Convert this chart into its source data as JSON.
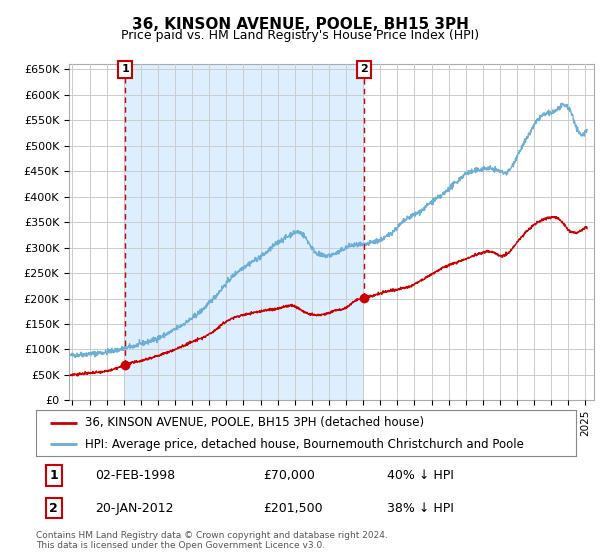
{
  "title": "36, KINSON AVENUE, POOLE, BH15 3PH",
  "subtitle": "Price paid vs. HM Land Registry's House Price Index (HPI)",
  "legend_line1": "36, KINSON AVENUE, POOLE, BH15 3PH (detached house)",
  "legend_line2": "HPI: Average price, detached house, Bournemouth Christchurch and Poole",
  "transaction1_date": "02-FEB-1998",
  "transaction1_price": "£70,000",
  "transaction1_hpi": "40% ↓ HPI",
  "transaction1_year": 1998.09,
  "transaction1_value": 70000,
  "transaction2_date": "20-JAN-2012",
  "transaction2_price": "£201,500",
  "transaction2_hpi": "38% ↓ HPI",
  "transaction2_year": 2012.05,
  "transaction2_value": 201500,
  "hpi_color": "#6baed6",
  "price_color": "#cc0000",
  "shade_color": "#ddeeff",
  "background_color": "#ffffff",
  "grid_color": "#cccccc",
  "ylim": [
    0,
    660000
  ],
  "xlim_start": 1994.8,
  "xlim_end": 2025.5,
  "footer": "Contains HM Land Registry data © Crown copyright and database right 2024.\nThis data is licensed under the Open Government Licence v3.0.",
  "hpi_keypoints_x": [
    1994.8,
    1995.5,
    1996.5,
    1997.5,
    1998.5,
    1999.5,
    2000.5,
    2001.5,
    2002.5,
    2003.5,
    2004.5,
    2005.5,
    2006.5,
    2007.0,
    2007.5,
    2008.0,
    2008.5,
    2009.0,
    2009.5,
    2010.0,
    2010.5,
    2011.0,
    2011.5,
    2012.0,
    2012.5,
    2013.0,
    2013.5,
    2014.0,
    2014.5,
    2015.0,
    2015.5,
    2016.0,
    2016.5,
    2017.0,
    2017.5,
    2018.0,
    2018.5,
    2019.0,
    2019.5,
    2020.0,
    2020.5,
    2021.0,
    2021.5,
    2022.0,
    2022.5,
    2023.0,
    2023.5,
    2024.0,
    2024.5,
    2025.0
  ],
  "hpi_keypoints_y": [
    88000,
    90000,
    93000,
    98000,
    106000,
    116000,
    130000,
    150000,
    175000,
    210000,
    248000,
    272000,
    295000,
    310000,
    320000,
    330000,
    325000,
    300000,
    285000,
    285000,
    290000,
    300000,
    305000,
    305000,
    310000,
    315000,
    325000,
    340000,
    355000,
    365000,
    375000,
    390000,
    400000,
    415000,
    430000,
    445000,
    450000,
    455000,
    455000,
    450000,
    450000,
    480000,
    510000,
    540000,
    560000,
    565000,
    575000,
    575000,
    535000,
    530000
  ],
  "prop_keypoints_x": [
    1994.8,
    1995.5,
    1996.5,
    1997.5,
    1998.09,
    1999.0,
    2000.0,
    2001.0,
    2002.0,
    2003.0,
    2004.0,
    2005.0,
    2006.0,
    2006.5,
    2007.0,
    2007.5,
    2008.0,
    2008.5,
    2009.0,
    2009.5,
    2010.0,
    2010.5,
    2011.0,
    2011.5,
    2012.05,
    2012.5,
    2013.0,
    2013.5,
    2014.0,
    2015.0,
    2016.0,
    2017.0,
    2018.0,
    2018.5,
    2019.0,
    2019.5,
    2020.0,
    2020.5,
    2021.0,
    2021.5,
    2022.0,
    2022.5,
    2023.0,
    2023.5,
    2024.0,
    2024.5,
    2025.0
  ],
  "prop_keypoints_y": [
    50000,
    52000,
    55000,
    62000,
    70000,
    78000,
    88000,
    100000,
    115000,
    130000,
    155000,
    168000,
    175000,
    178000,
    180000,
    185000,
    185000,
    175000,
    168000,
    168000,
    172000,
    178000,
    182000,
    195000,
    201500,
    205000,
    210000,
    215000,
    218000,
    228000,
    248000,
    265000,
    278000,
    285000,
    290000,
    292000,
    285000,
    290000,
    310000,
    330000,
    345000,
    355000,
    360000,
    355000,
    335000,
    330000,
    340000
  ]
}
